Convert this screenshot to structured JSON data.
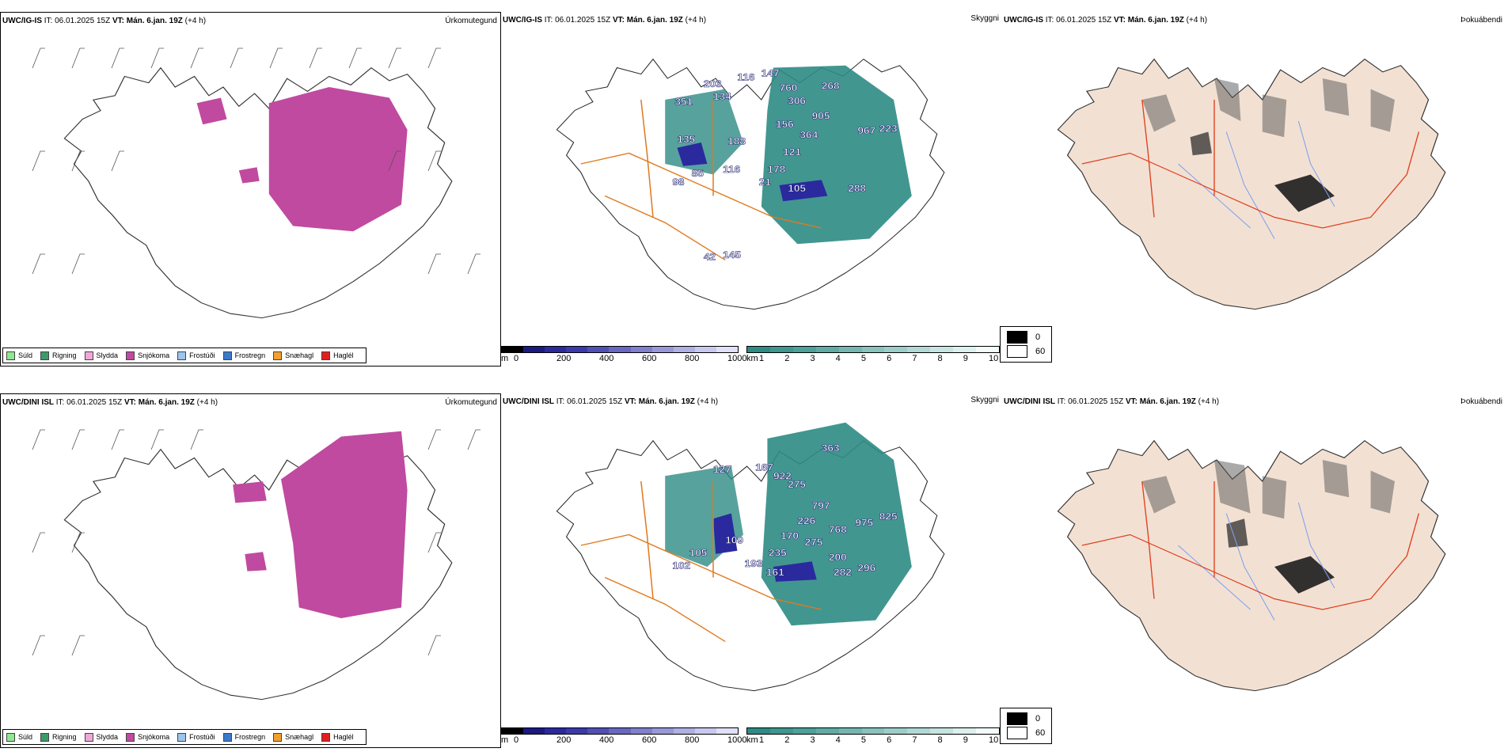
{
  "colors": {
    "snow": "#c04aa0",
    "cloud_low": "#2e8b84",
    "cloud_high": "#2a2a9e",
    "roads": "#e07a20",
    "land_tan": "#f2e1d3",
    "rivers": "#7f9ff0"
  },
  "rows": [
    {
      "model": "UWC/IG-IS",
      "it_label": "IT:",
      "it_value": "06.01.2025 15Z",
      "vt_label": "VT:",
      "vt_value": "Mán. 6.jan. 19Z",
      "lead": "(+4 h)",
      "precip_caption": "Úrkomutegund",
      "cloud_caption": "Skyggni",
      "fog_caption": "Þokuábendi",
      "peaks": [
        "351",
        "203",
        "116",
        "147",
        "760",
        "268",
        "134",
        "306",
        "905",
        "156",
        "364",
        "967",
        "223",
        "135",
        "188",
        "121",
        "178",
        "85",
        "116",
        "98",
        "21",
        "105",
        "288",
        "42",
        "145"
      ]
    },
    {
      "model": "UWC/DINI ISL",
      "it_label": "IT:",
      "it_value": "06.01.2025 15Z",
      "vt_label": "VT:",
      "vt_value": "Mán. 6.jan. 19Z",
      "lead": "(+4 h)",
      "precip_caption": "Úrkomutegund",
      "cloud_caption": "Skyggni",
      "fog_caption": "Þokuábendi",
      "peaks": [
        "363",
        "127",
        "167",
        "922",
        "275",
        "797",
        "226",
        "768",
        "975",
        "825",
        "109",
        "105",
        "102",
        "170",
        "275",
        "235",
        "193",
        "161",
        "200",
        "282",
        "296"
      ]
    }
  ],
  "precip_legend": [
    {
      "label": "Súld",
      "color": "#8fe88f"
    },
    {
      "label": "Rigning",
      "color": "#3c9a6a"
    },
    {
      "label": "Slydda",
      "color": "#f0a8d8"
    },
    {
      "label": "Snjókoma",
      "color": "#c04aa0"
    },
    {
      "label": "Frostúði",
      "color": "#9cc4ee"
    },
    {
      "label": "Frostregn",
      "color": "#3a7ac8"
    },
    {
      "label": "Snæhagl",
      "color": "#f0a030"
    },
    {
      "label": "Haglél",
      "color": "#e02020"
    }
  ],
  "scale_m": {
    "unit": "m",
    "ticks": [
      "0",
      "200",
      "400",
      "600",
      "800",
      "1000"
    ]
  },
  "scale_km": {
    "unit": "km",
    "ticks": [
      "1",
      "2",
      "3",
      "4",
      "5",
      "6",
      "7",
      "8",
      "9",
      "10"
    ]
  },
  "fog_levels": [
    {
      "label": "0",
      "color": "#000000"
    },
    {
      "label": "60",
      "color": "#ffffff"
    }
  ]
}
